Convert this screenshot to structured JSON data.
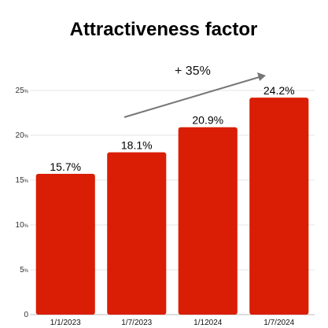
{
  "chart_data": {
    "type": "bar",
    "title": "Attractiveness factor",
    "categories": [
      "1/1/2023",
      "1/7/2023",
      "1/12024",
      "1/7/2024"
    ],
    "values": [
      15.7,
      18.1,
      20.9,
      24.2
    ],
    "value_labels": [
      "15.7%",
      "18.1%",
      "20.9%",
      "24.2%"
    ],
    "ylim": [
      0,
      25
    ],
    "yticks": [
      0,
      5,
      10,
      15,
      20,
      25
    ],
    "ytick_labels": [
      "0",
      "5",
      "10",
      "15",
      "20",
      "25"
    ],
    "ytick_unit": "%",
    "grid": true,
    "bar_color": "#d91e05",
    "annotation": "+ 35%"
  }
}
